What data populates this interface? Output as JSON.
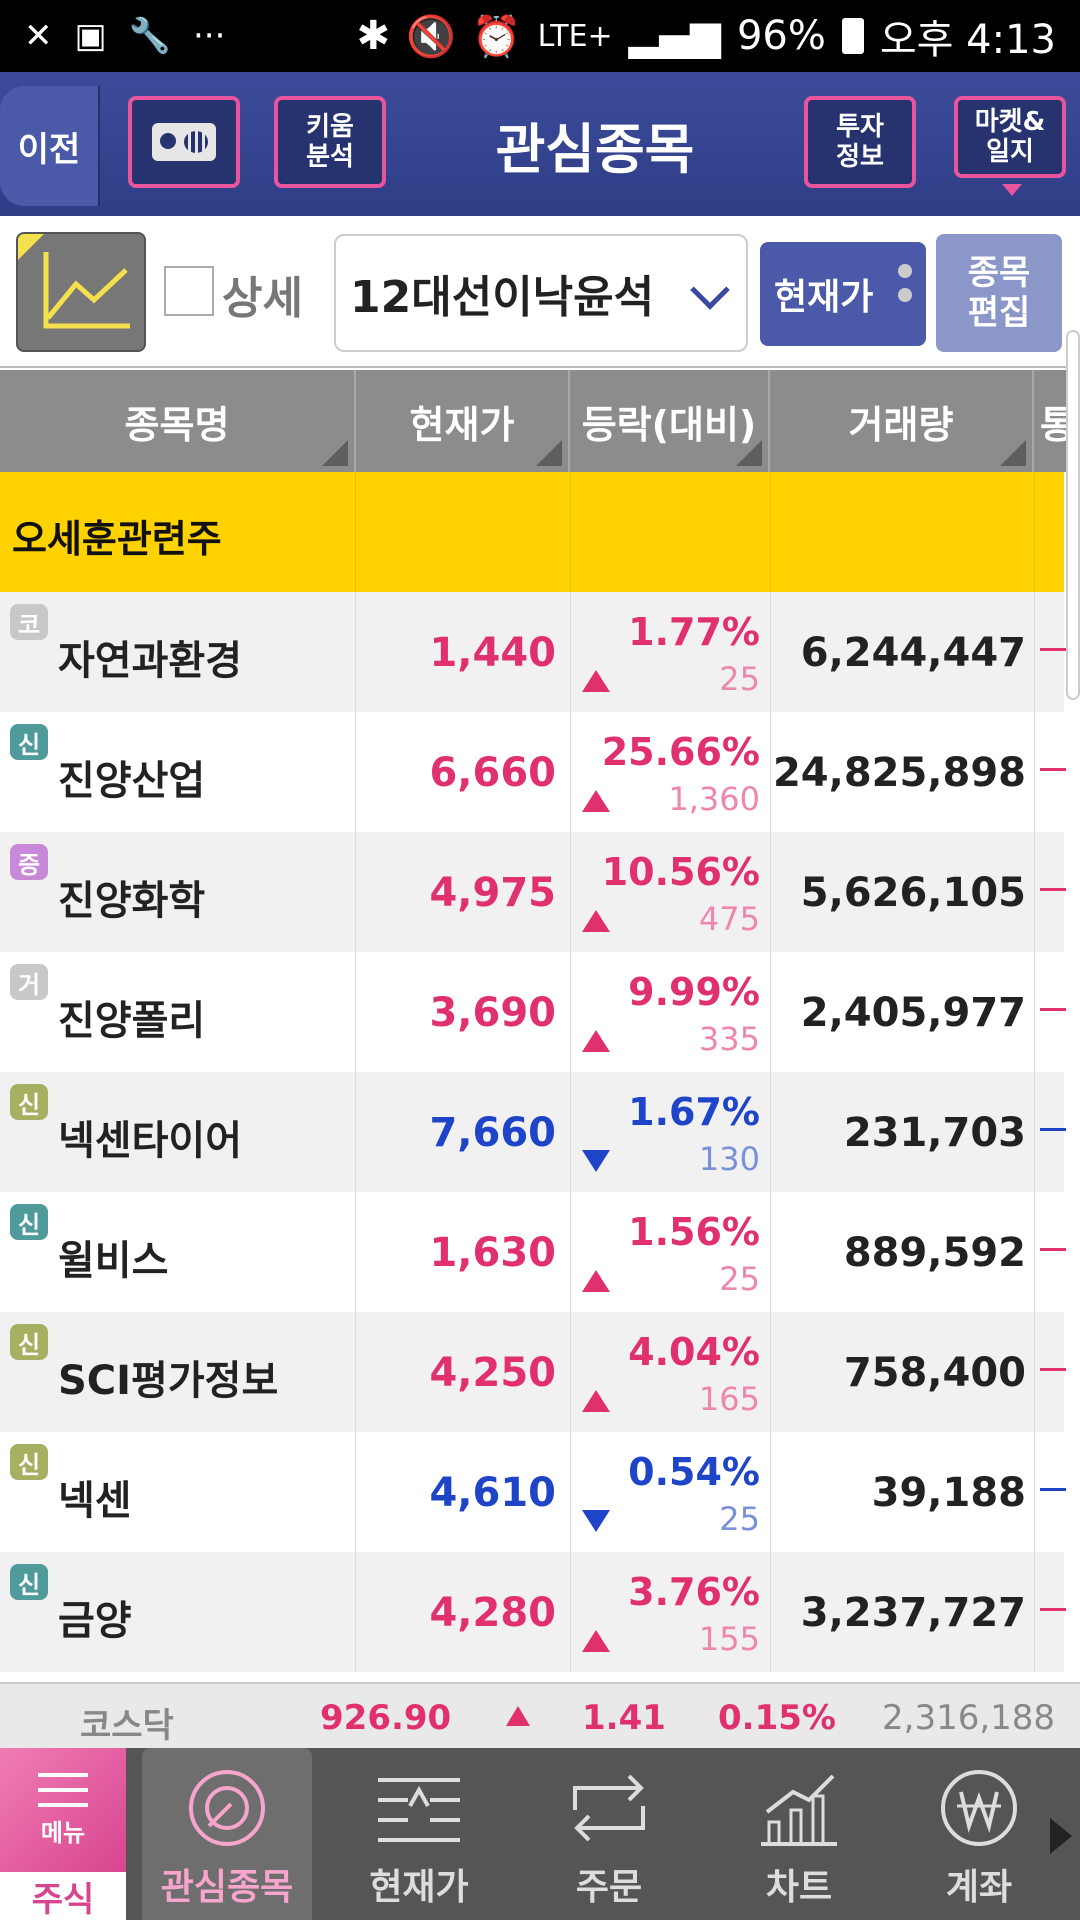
{
  "status_bar": {
    "battery": "96%",
    "time": "오후 4:13",
    "network": "LTE+"
  },
  "header": {
    "back_label": "이전",
    "kiwoom_label_line1": "키움",
    "kiwoom_label_line2": "분석",
    "title": "관심종목",
    "invest_line1": "투자",
    "invest_line2": "정보",
    "market_line1": "마켓&",
    "market_line2": "일지"
  },
  "toolbar": {
    "detail_label": "상세",
    "group_name": "12대선이낙윤석",
    "price_mode_label": "현재가",
    "edit_line1": "종목",
    "edit_line2": "편집"
  },
  "table": {
    "columns": [
      "종목명",
      "현재가",
      "등락(대비)",
      "거래량",
      "통"
    ],
    "group_label": "오세훈관련주",
    "rows": [
      {
        "badge": "코",
        "badge_color": "#c8c8c8",
        "name": "자연과환경",
        "price": "1,440",
        "direction": "up",
        "pct": "1.77%",
        "diff": "25",
        "volume": "6,244,447"
      },
      {
        "badge": "신",
        "badge_color": "#4f9a9a",
        "name": "진양산업",
        "price": "6,660",
        "direction": "up",
        "pct": "25.66%",
        "diff": "1,360",
        "volume": "24,825,898"
      },
      {
        "badge": "증",
        "badge_color": "#c88ad8",
        "name": "진양화학",
        "price": "4,975",
        "direction": "up",
        "pct": "10.56%",
        "diff": "475",
        "volume": "5,626,105"
      },
      {
        "badge": "거",
        "badge_color": "#c8c8c8",
        "name": "진양폴리",
        "price": "3,690",
        "direction": "up",
        "pct": "9.99%",
        "diff": "335",
        "volume": "2,405,977"
      },
      {
        "badge": "신",
        "badge_color": "#a6b060",
        "name": "넥센타이어",
        "price": "7,660",
        "direction": "down",
        "pct": "1.67%",
        "diff": "130",
        "volume": "231,703"
      },
      {
        "badge": "신",
        "badge_color": "#4f9a9a",
        "name": "윌비스",
        "price": "1,630",
        "direction": "up",
        "pct": "1.56%",
        "diff": "25",
        "volume": "889,592"
      },
      {
        "badge": "신",
        "badge_color": "#a6b060",
        "name": "SCI평가정보",
        "price": "4,250",
        "direction": "up",
        "pct": "4.04%",
        "diff": "165",
        "volume": "758,400"
      },
      {
        "badge": "신",
        "badge_color": "#a6b060",
        "name": "넥센",
        "price": "4,610",
        "direction": "down",
        "pct": "0.54%",
        "diff": "25",
        "volume": "39,188"
      },
      {
        "badge": "신",
        "badge_color": "#4f9a9a",
        "name": "금양",
        "price": "4,280",
        "direction": "up",
        "pct": "3.76%",
        "diff": "155",
        "volume": "3,237,727"
      }
    ]
  },
  "index_bar": {
    "name": "코스닥",
    "value": "926.90",
    "change": "1.41",
    "pct": "0.15%",
    "volume": "2,316,188"
  },
  "bottom_nav": {
    "menu_label": "메뉴",
    "stock_label": "주식",
    "items": [
      "관심종목",
      "현재가",
      "주문",
      "차트",
      "계좌"
    ]
  },
  "colors": {
    "up": "#e0306e",
    "down": "#1e44c8",
    "header": "#2f3d86",
    "accent_pink": "#e9559c",
    "group_yellow": "#ffd200"
  }
}
